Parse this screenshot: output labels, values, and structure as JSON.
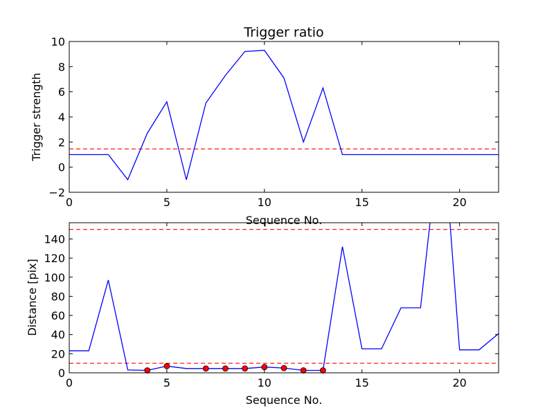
{
  "chart_data": [
    {
      "type": "line",
      "title": "Trigger ratio",
      "xlabel": "Sequence No.",
      "ylabel": "Trigger strength",
      "xlim": [
        0,
        22
      ],
      "ylim": [
        -2,
        10
      ],
      "xticks": [
        "0",
        "5",
        "10",
        "15",
        "20"
      ],
      "yticks": [
        "−2",
        "0",
        "2",
        "4",
        "6",
        "8",
        "10"
      ],
      "grid": false,
      "colors": {
        "series": "#0000ff",
        "threshold": "#ff0000"
      },
      "series": [
        {
          "x": [
            0,
            1,
            2,
            3,
            4,
            5,
            6,
            7,
            8,
            9,
            10,
            11,
            12,
            13,
            14,
            15,
            16,
            17,
            18,
            19,
            20,
            21,
            22
          ],
          "y": [
            1,
            1,
            1,
            -1,
            2.7,
            5.2,
            -1,
            5.1,
            7.3,
            9.2,
            9.3,
            7.1,
            2.0,
            6.3,
            1,
            1,
            1,
            1,
            1,
            1,
            1,
            1,
            1
          ]
        }
      ],
      "hlines": [
        1.45
      ]
    },
    {
      "type": "line",
      "title": "",
      "xlabel": "Sequence No.",
      "ylabel": "Distance [pix]",
      "xlim": [
        0,
        22
      ],
      "ylim": [
        0,
        157
      ],
      "xticks": [
        "0",
        "5",
        "10",
        "15",
        "20"
      ],
      "yticks": [
        "0",
        "20",
        "40",
        "60",
        "80",
        "100",
        "120",
        "140"
      ],
      "grid": false,
      "colors": {
        "series": "#0000ff",
        "threshold": "#ff0000",
        "markers": "#ff0000"
      },
      "series": [
        {
          "x": [
            0,
            1,
            2,
            3,
            4,
            5,
            6,
            7,
            8,
            9,
            10,
            11,
            12,
            13,
            14,
            15,
            16,
            17,
            18,
            18.5,
            19.5,
            20,
            21,
            22
          ],
          "y": [
            23,
            23,
            97,
            3,
            2.5,
            7,
            4.5,
            4.5,
            4.5,
            4.5,
            6,
            5,
            2.5,
            2.5,
            132,
            25,
            25,
            68,
            68,
            160,
            160,
            24,
            24,
            41
          ]
        }
      ],
      "markers": {
        "x": [
          4,
          5,
          7,
          8,
          9,
          10,
          11,
          12,
          13
        ],
        "y": [
          2.5,
          7,
          4.5,
          4.5,
          4.5,
          6,
          5,
          2.5,
          2.5
        ]
      },
      "hlines": [
        10,
        150
      ]
    }
  ]
}
